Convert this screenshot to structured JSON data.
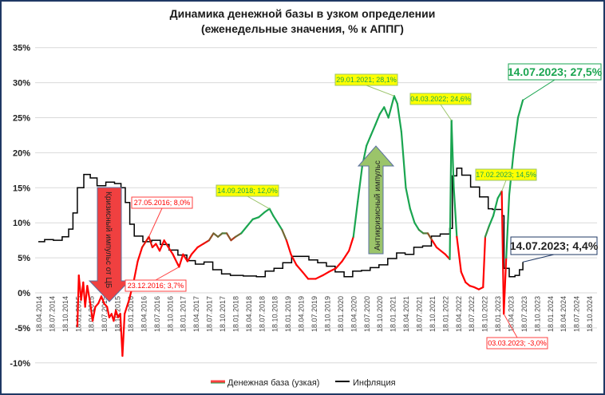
{
  "chart_data": {
    "type": "line",
    "title": "Динамика денежной базы в узком определении",
    "subtitle": "(еженедельные значения, % к АППГ)",
    "xlabel": "",
    "ylabel": "",
    "ylim": [
      -10,
      35
    ],
    "yticks": [
      "-10%",
      "-5%",
      "0%",
      "5%",
      "10%",
      "15%",
      "20%",
      "25%",
      "30%",
      "35%"
    ],
    "ytick_values": [
      -10,
      -5,
      0,
      5,
      10,
      15,
      20,
      25,
      30,
      35
    ],
    "xticks": [
      "18.04.2014",
      "18.07.2014",
      "18.10.2014",
      "18.01.2015",
      "18.04.2015",
      "18.07.2015",
      "18.10.2015",
      "18.01.2016",
      "18.04.2016",
      "18.07.2016",
      "18.10.2016",
      "18.01.2017",
      "18.04.2017",
      "18.07.2017",
      "18.10.2017",
      "18.01.2018",
      "18.04.2018",
      "18.07.2018",
      "18.10.2018",
      "18.01.2019",
      "18.04.2019",
      "18.07.2019",
      "18.10.2019",
      "18.01.2020",
      "18.04.2020",
      "18.07.2020",
      "18.10.2020",
      "18.01.2021",
      "18.04.2021",
      "18.07.2021",
      "18.10.2021",
      "18.01.2022",
      "18.04.2022",
      "18.07.2022",
      "18.10.2022",
      "18.01.2023",
      "18.04.2023",
      "18.07.2023",
      "18.10.2023",
      "18.01.2024",
      "18.04.2024",
      "18.07.2024",
      "18.10.2024"
    ],
    "grid": true,
    "legend_position": "bottom",
    "colors": {
      "money_base_low": "#ff0000",
      "money_base_high": "#1aa550",
      "inflation": "#000000"
    },
    "series": [
      {
        "name": "Денежная база (узкая)",
        "points": [
          [
            "2015-01-15",
            -4.8
          ],
          [
            "2015-01-25",
            2.5
          ],
          [
            "2015-02-10",
            -1
          ],
          [
            "2015-02-25",
            1.5
          ],
          [
            "2015-03-10",
            -2
          ],
          [
            "2015-03-25",
            1
          ],
          [
            "2015-04-15",
            -1.5
          ],
          [
            "2015-05-01",
            -4
          ],
          [
            "2015-05-20",
            -2
          ],
          [
            "2015-06-10",
            -1.5
          ],
          [
            "2015-07-01",
            -0.5
          ],
          [
            "2015-07-20",
            -1.5
          ],
          [
            "2015-08-10",
            -2
          ],
          [
            "2015-08-25",
            -3.5
          ],
          [
            "2015-09-10",
            -3
          ],
          [
            "2015-09-25",
            -4
          ],
          [
            "2015-10-10",
            -2.5
          ],
          [
            "2015-10-25",
            -3.5
          ],
          [
            "2015-11-10",
            -3
          ],
          [
            "2015-11-25",
            -9
          ],
          [
            "2015-12-10",
            -3
          ],
          [
            "2016-01-10",
            -1
          ],
          [
            "2016-02-10",
            1.5
          ],
          [
            "2016-03-10",
            4.5
          ],
          [
            "2016-04-10",
            6.5
          ],
          [
            "2016-05-27",
            8.0
          ],
          [
            "2016-06-20",
            6.5
          ],
          [
            "2016-07-15",
            7
          ],
          [
            "2016-08-10",
            6
          ],
          [
            "2016-09-10",
            7.5
          ],
          [
            "2016-10-10",
            6.5
          ],
          [
            "2016-11-10",
            5.5
          ],
          [
            "2016-12-23",
            3.7
          ],
          [
            "2017-01-20",
            5.5
          ],
          [
            "2017-02-20",
            4.5
          ],
          [
            "2017-03-20",
            5.5
          ],
          [
            "2017-05-01",
            6.5
          ],
          [
            "2017-06-10",
            7
          ],
          [
            "2017-07-20",
            7.5
          ],
          [
            "2017-08-20",
            8.5
          ],
          [
            "2017-09-20",
            8
          ],
          [
            "2017-10-20",
            8.5
          ],
          [
            "2017-11-20",
            8.5
          ],
          [
            "2017-12-20",
            7.5
          ],
          [
            "2018-01-20",
            8
          ],
          [
            "2018-03-01",
            8.5
          ],
          [
            "2018-04-10",
            9.5
          ],
          [
            "2018-05-20",
            10.5
          ],
          [
            "2018-07-01",
            10.8
          ],
          [
            "2018-08-10",
            11.5
          ],
          [
            "2018-09-14",
            12.0
          ],
          [
            "2018-10-10",
            11
          ],
          [
            "2018-11-10",
            10
          ],
          [
            "2018-12-10",
            9
          ],
          [
            "2019-01-10",
            7.5
          ],
          [
            "2019-02-10",
            5.5
          ],
          [
            "2019-03-20",
            4
          ],
          [
            "2019-05-01",
            3
          ],
          [
            "2019-06-10",
            2
          ],
          [
            "2019-08-01",
            2
          ],
          [
            "2019-09-20",
            2.5
          ],
          [
            "2019-11-01",
            3
          ],
          [
            "2019-12-20",
            3.5
          ],
          [
            "2020-02-01",
            4.5
          ],
          [
            "2020-03-20",
            6
          ],
          [
            "2020-04-20",
            8
          ],
          [
            "2020-05-20",
            13
          ],
          [
            "2020-06-20",
            18
          ],
          [
            "2020-07-20",
            21
          ],
          [
            "2020-08-20",
            22.5
          ],
          [
            "2020-09-20",
            24
          ],
          [
            "2020-10-20",
            25.5
          ],
          [
            "2020-11-20",
            26.5
          ],
          [
            "2020-12-20",
            25
          ],
          [
            "2021-01-29",
            28.1
          ],
          [
            "2021-02-20",
            27
          ],
          [
            "2021-03-20",
            23
          ],
          [
            "2021-04-20",
            15
          ],
          [
            "2021-05-20",
            12
          ],
          [
            "2021-06-20",
            10
          ],
          [
            "2021-07-20",
            9
          ],
          [
            "2021-08-20",
            8.5
          ],
          [
            "2021-09-20",
            8.5
          ],
          [
            "2021-10-20",
            7.5
          ],
          [
            "2021-11-20",
            6.5
          ],
          [
            "2021-12-20",
            6
          ],
          [
            "2022-01-20",
            5.5
          ],
          [
            "2022-02-20",
            4.8
          ],
          [
            "2022-03-04",
            24.6
          ],
          [
            "2022-03-20",
            15
          ],
          [
            "2022-04-10",
            8
          ],
          [
            "2022-05-10",
            3
          ],
          [
            "2022-06-10",
            1.5
          ],
          [
            "2022-07-10",
            1
          ],
          [
            "2022-08-10",
            0.8
          ],
          [
            "2022-09-10",
            0.5
          ],
          [
            "2022-10-10",
            0.8
          ],
          [
            "2022-10-25",
            8
          ],
          [
            "2022-11-20",
            9.5
          ],
          [
            "2022-12-20",
            11
          ],
          [
            "2023-01-20",
            13.5
          ],
          [
            "2023-02-17",
            14.5
          ],
          [
            "2023-03-03",
            -3.0
          ],
          [
            "2023-03-20",
            5
          ],
          [
            "2023-04-10",
            14
          ],
          [
            "2023-05-10",
            20
          ],
          [
            "2023-06-10",
            25
          ],
          [
            "2023-07-14",
            27.5
          ]
        ]
      },
      {
        "name": "Инфляция",
        "points": [
          [
            "2014-04-18",
            7.3
          ],
          [
            "2014-06-01",
            7.6
          ],
          [
            "2014-08-01",
            7.5
          ],
          [
            "2014-10-01",
            8.0
          ],
          [
            "2014-11-15",
            9.1
          ],
          [
            "2014-12-15",
            11.4
          ],
          [
            "2015-01-15",
            15
          ],
          [
            "2015-03-01",
            16.9
          ],
          [
            "2015-04-15",
            16.4
          ],
          [
            "2015-06-01",
            15.3
          ],
          [
            "2015-08-01",
            15.8
          ],
          [
            "2015-10-01",
            15.6
          ],
          [
            "2015-11-15",
            15
          ],
          [
            "2015-12-15",
            12.9
          ],
          [
            "2016-01-15",
            9.8
          ],
          [
            "2016-02-15",
            8.1
          ],
          [
            "2016-04-15",
            7.3
          ],
          [
            "2016-06-15",
            7.5
          ],
          [
            "2016-08-15",
            6.9
          ],
          [
            "2016-10-15",
            6.1
          ],
          [
            "2016-12-15",
            5.4
          ],
          [
            "2017-02-15",
            4.6
          ],
          [
            "2017-04-15",
            4.1
          ],
          [
            "2017-06-15",
            4.4
          ],
          [
            "2017-08-15",
            3.3
          ],
          [
            "2017-10-15",
            2.7
          ],
          [
            "2017-12-15",
            2.5
          ],
          [
            "2018-03-15",
            2.4
          ],
          [
            "2018-06-15",
            2.3
          ],
          [
            "2018-08-15",
            3.1
          ],
          [
            "2018-10-15",
            3.5
          ],
          [
            "2018-12-15",
            4.3
          ],
          [
            "2019-02-15",
            5.2
          ],
          [
            "2019-04-15",
            5.2
          ],
          [
            "2019-06-15",
            4.7
          ],
          [
            "2019-08-15",
            4.3
          ],
          [
            "2019-10-15",
            3.8
          ],
          [
            "2019-12-15",
            3.0
          ],
          [
            "2020-02-15",
            2.3
          ],
          [
            "2020-04-15",
            3.1
          ],
          [
            "2020-06-15",
            3.2
          ],
          [
            "2020-08-15",
            3.6
          ],
          [
            "2020-10-15",
            4.0
          ],
          [
            "2020-12-15",
            4.9
          ],
          [
            "2021-02-15",
            5.7
          ],
          [
            "2021-04-15",
            5.5
          ],
          [
            "2021-06-15",
            6.5
          ],
          [
            "2021-08-15",
            6.7
          ],
          [
            "2021-10-15",
            8.1
          ],
          [
            "2021-12-15",
            8.4
          ],
          [
            "2022-02-20",
            9.2
          ],
          [
            "2022-03-10",
            16.7
          ],
          [
            "2022-04-10",
            17.8
          ],
          [
            "2022-05-15",
            16.8
          ],
          [
            "2022-07-15",
            15.1
          ],
          [
            "2022-09-15",
            13.7
          ],
          [
            "2022-11-15",
            12.0
          ],
          [
            "2022-12-15",
            11.9
          ],
          [
            "2023-02-20",
            11.0
          ],
          [
            "2023-03-05",
            3.5
          ],
          [
            "2023-04-10",
            2.3
          ],
          [
            "2023-05-20",
            2.5
          ],
          [
            "2023-06-20",
            3.3
          ],
          [
            "2023-07-14",
            4.4
          ]
        ]
      }
    ],
    "annotations": [
      {
        "text": "27.05.2016; 8,0%",
        "style": "red"
      },
      {
        "text": "23.12.2016; 3,7%",
        "style": "red"
      },
      {
        "text": "14.09.2018; 12,0%",
        "style": "yellow"
      },
      {
        "text": "29.01.2021; 28,1%",
        "style": "yellow"
      },
      {
        "text": "04.03.2022; 24,6%",
        "style": "yellow"
      },
      {
        "text": "17.02.2023; 14,5%",
        "style": "yellow"
      },
      {
        "text": "14.07.2023; 27,5%",
        "style": "big-green"
      },
      {
        "text": "14.07.2023; 4,4%",
        "style": "big-navy"
      },
      {
        "text": "03.03.2023; -3,0%",
        "style": "red"
      }
    ],
    "arrows": [
      {
        "text": "Кризисный импульс от ЦБ",
        "direction": "down",
        "color": "#f04040"
      },
      {
        "text": "Антикризисный импульс",
        "direction": "up",
        "color": "#9bc46a"
      }
    ]
  }
}
